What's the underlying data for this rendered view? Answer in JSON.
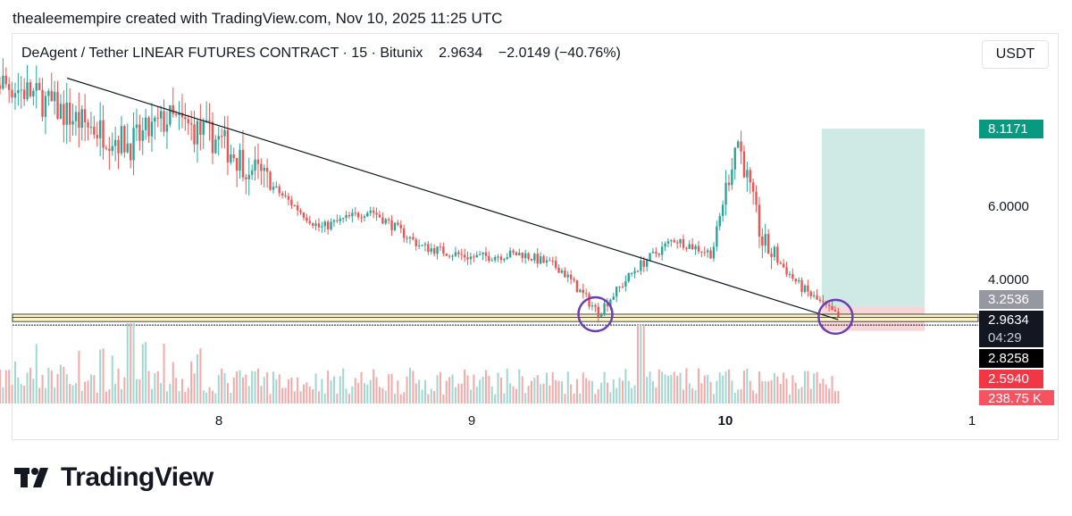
{
  "caption": "thealeemempire created with TradingView.com, Nov 10, 2025 11:25 UTC",
  "legend": {
    "symbol": "DeAgent / Tether LINEAR FUTURES CONTRACT",
    "interval": "15",
    "exchange": "Bitunix",
    "last": "2.9634",
    "change": "−2.0149 (−40.76%)"
  },
  "unit_button": "USDT",
  "price_labels": {
    "target": "8.1171",
    "p6": "6.0000",
    "p4": "4.0000",
    "entry": "3.2536",
    "last": "2.9634",
    "countdown": "04:29",
    "level": "2.8258",
    "stop": "2.5940",
    "volume": "238.75 K"
  },
  "time_labels": [
    "8",
    "9",
    "10",
    "1"
  ],
  "brand": {
    "name": "TradingView"
  },
  "colors": {
    "up": "#26a69a",
    "down": "#ef5350",
    "target_zone": "#cfeae4",
    "stop_zone": "#f8d5d6",
    "support_band": "#fff3c4",
    "circle": "#6a3fb5",
    "trendline": "#131722",
    "target_label": "#089981",
    "entry_label": "#9598a1",
    "last_label": "#131722",
    "stop_label": "#f23645"
  },
  "chart_data": {
    "type": "candlestick",
    "symbol": "DeAgent / Tether LINEAR FUTURES CONTRACT",
    "interval": "15",
    "y_tick_labels": [
      "4.0000",
      "6.0000"
    ],
    "x_tick_labels": [
      "8",
      "9",
      "10",
      "1"
    ],
    "x": [
      7.05,
      7.25,
      7.45,
      7.65,
      7.8,
      8.0,
      8.2,
      8.4,
      8.6,
      8.8,
      9.0,
      9.2,
      9.35,
      9.5,
      9.65,
      9.8,
      9.95,
      10.05,
      10.15,
      10.3,
      10.45
    ],
    "close": [
      9.6,
      9.1,
      8.3,
      7.7,
      8.4,
      7.8,
      6.6,
      5.4,
      5.9,
      4.9,
      4.6,
      4.7,
      4.3,
      3.1,
      4.3,
      5.1,
      4.7,
      7.9,
      5.0,
      3.8,
      2.96
    ],
    "volume_note": "volume histogram shown below price",
    "last_price": 2.9634,
    "change": -2.0149,
    "change_pct": -40.76,
    "position": {
      "target": 8.1171,
      "entry": 3.2536,
      "stop": 2.594
    },
    "support_level": 2.8258,
    "support_zone": [
      2.85,
      3.05
    ],
    "trendline": {
      "from": {
        "x": 7.4,
        "y": 9.5
      },
      "to": {
        "x": 10.45,
        "y": 2.9
      }
    },
    "highlights": [
      {
        "x": 9.5,
        "y": 3.05
      },
      {
        "x": 10.45,
        "y": 2.98
      }
    ],
    "last_volume": "238.75 K"
  }
}
